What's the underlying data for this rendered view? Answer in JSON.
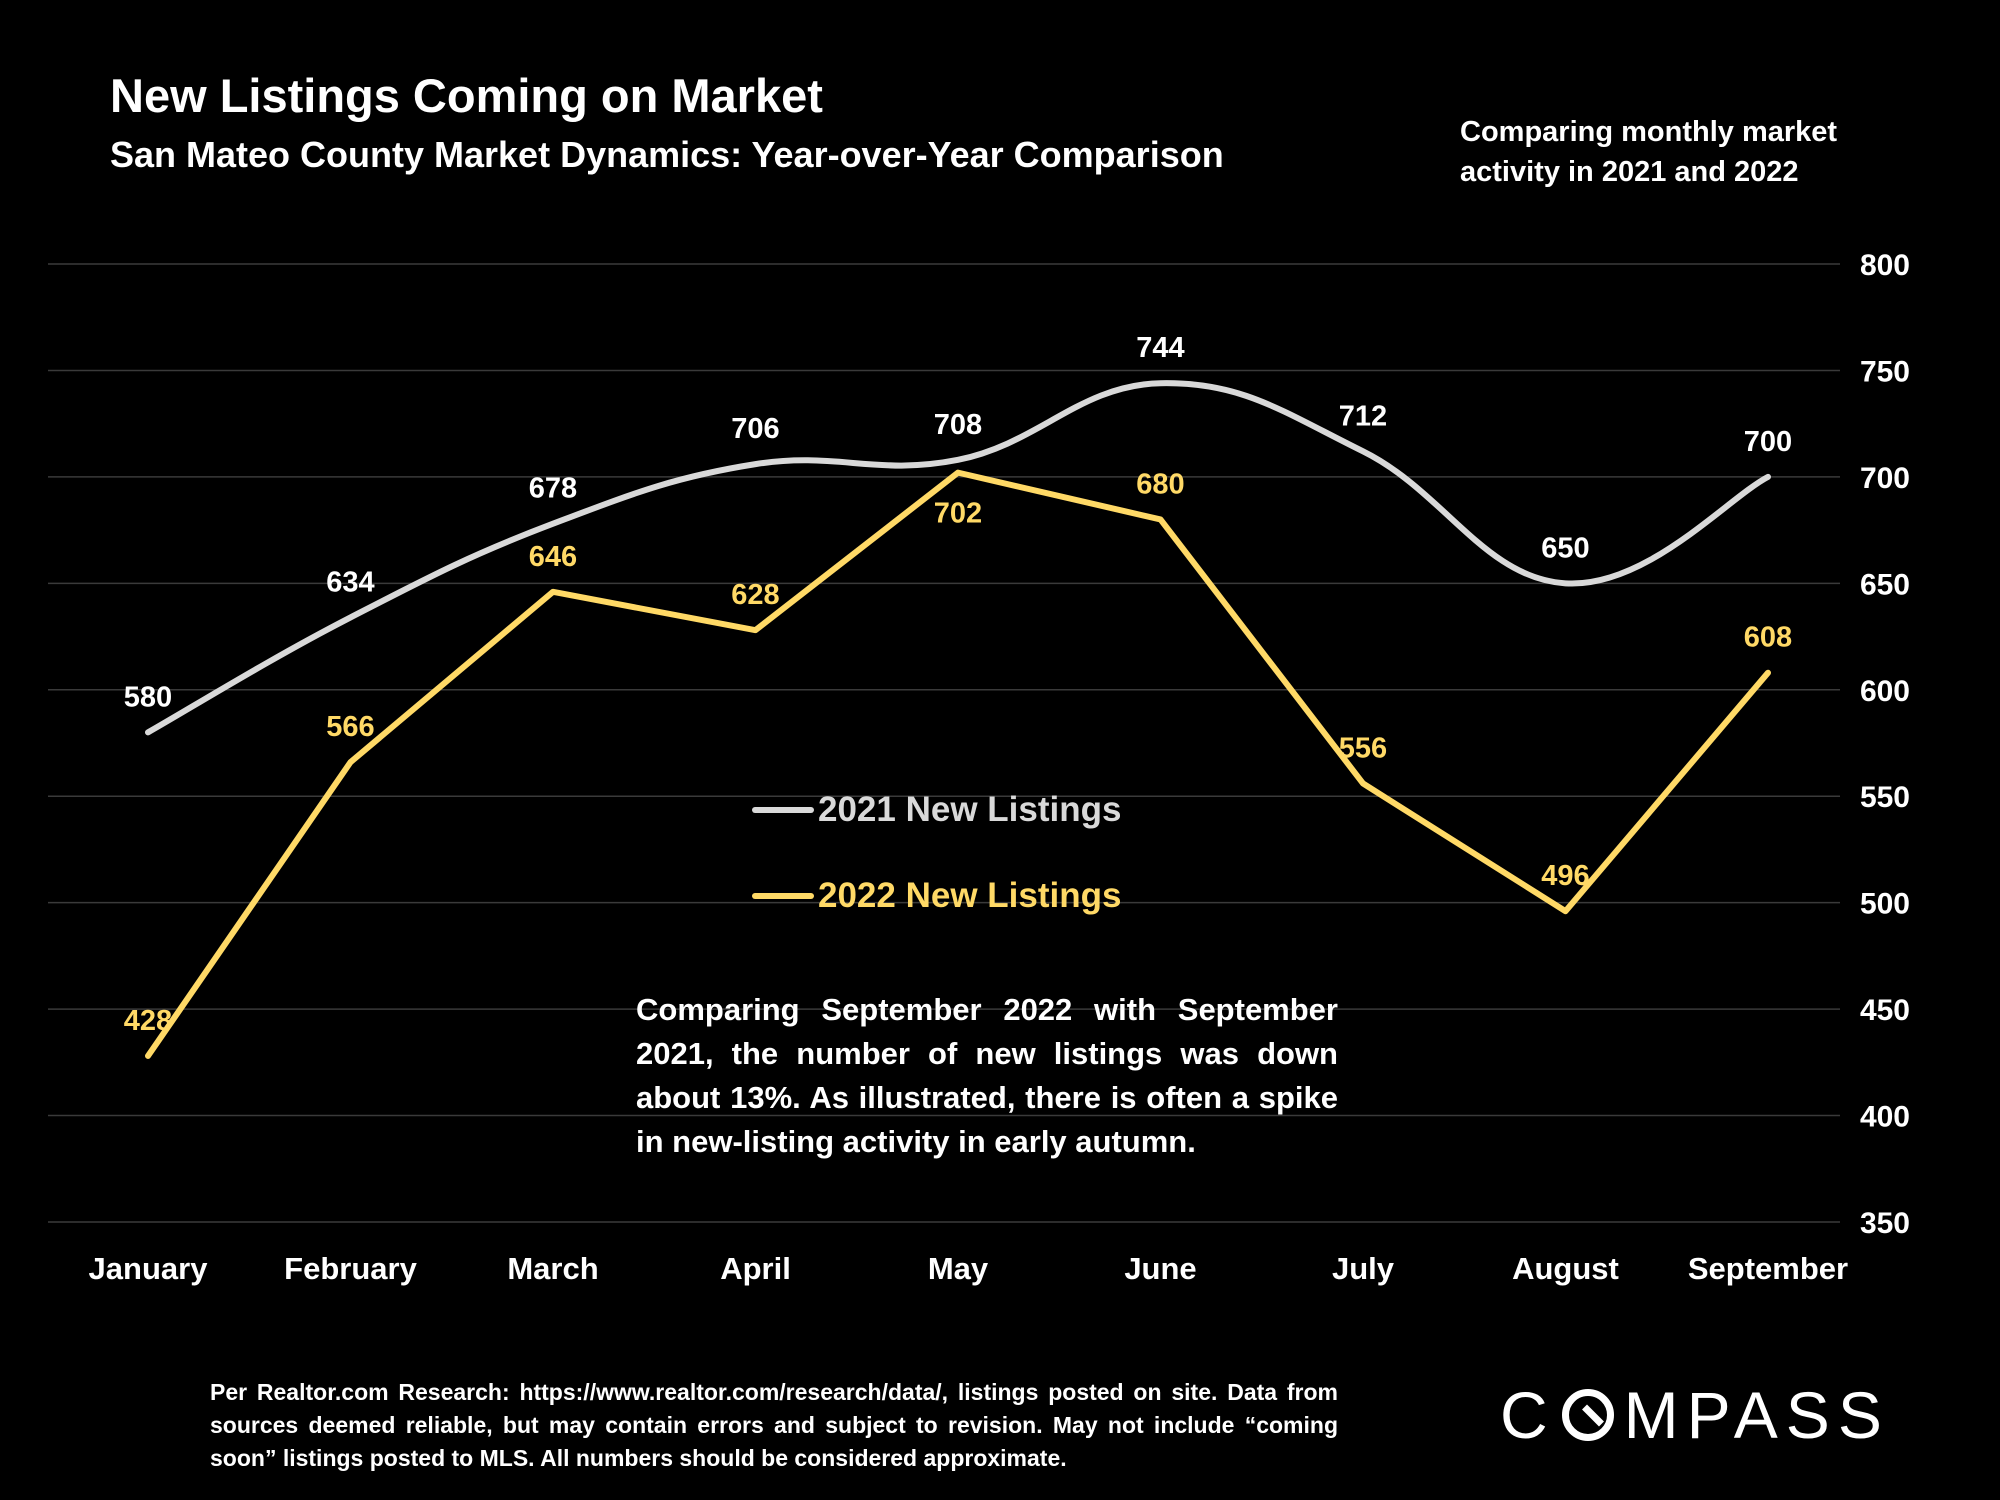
{
  "header": {
    "title": "New Listings Coming on Market",
    "subtitle": "San Mateo County Market Dynamics: Year-over-Year Comparison",
    "side_note": "Comparing monthly market activity in 2021 and 2022"
  },
  "commentary": "Comparing September 2022 with September 2021, the number of new listings was down about 13%. As illustrated, there is often a spike in new-listing activity in early autumn.",
  "footnote": "Per Realtor.com Research:  https://www.realtor.com/research/data/, listings posted on site. Data from sources deemed reliable, but may contain errors and subject to revision. May not include “coming soon” listings posted to MLS. All numbers should be considered approximate.",
  "logo": {
    "before": "C",
    "after": "MPASS"
  },
  "colors": {
    "background": "#000000",
    "series_2021": "#d9d9d9",
    "series_2022": "#ffd966",
    "gridline": "#3a3a3a",
    "text": "#ffffff"
  },
  "chart_data": {
    "type": "line",
    "categories": [
      "January",
      "February",
      "March",
      "April",
      "May",
      "June",
      "July",
      "August",
      "September"
    ],
    "series": [
      {
        "name": "2021 New Listings",
        "values": [
          580,
          634,
          678,
          706,
          708,
          744,
          712,
          650,
          700
        ],
        "color": "#d9d9d9",
        "smooth": true
      },
      {
        "name": "2022 New Listings",
        "values": [
          428,
          566,
          646,
          628,
          702,
          680,
          556,
          496,
          608
        ],
        "color": "#ffd966",
        "smooth": false
      }
    ],
    "yticks": [
      350,
      400,
      450,
      500,
      550,
      600,
      650,
      700,
      750,
      800
    ],
    "ylim": [
      350,
      800
    ],
    "y_axis_side": "right",
    "grid": true,
    "legend_placement": "center"
  }
}
